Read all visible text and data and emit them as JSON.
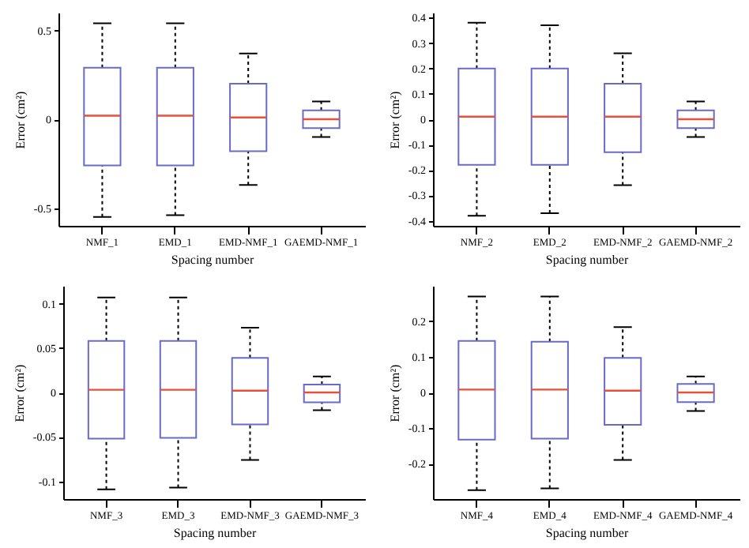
{
  "chart_data": [
    {
      "type": "box",
      "xlabel": "Spacing number",
      "ylabel": "Error (cm²)",
      "categories": [
        "NMF_1",
        "EMD_1",
        "EMD-NMF_1",
        "GAEMD-NMF_1"
      ],
      "ylim": [
        -0.6,
        0.6
      ],
      "yticks": [
        -0.5,
        0,
        0.5
      ],
      "series": [
        {
          "color": "#6a6ac8",
          "boxes": [
            {
              "low": -0.55,
              "q1": -0.26,
              "median": 0.02,
              "q3": 0.29,
              "high": 0.54
            },
            {
              "low": -0.54,
              "q1": -0.26,
              "median": 0.02,
              "q3": 0.29,
              "high": 0.54
            },
            {
              "low": -0.37,
              "q1": -0.18,
              "median": 0.01,
              "q3": 0.2,
              "high": 0.37
            },
            {
              "low": -0.1,
              "q1": -0.05,
              "median": 0,
              "q3": 0.05,
              "high": 0.1
            }
          ]
        }
      ]
    },
    {
      "type": "box",
      "xlabel": "Spacing number",
      "ylabel": "Error (cm²)",
      "categories": [
        "NMF_2",
        "EMD_2",
        "EMD-NMF_2",
        "GAEMD-NMF_2"
      ],
      "ylim": [
        -0.42,
        0.42
      ],
      "yticks": [
        -0.4,
        -0.3,
        -0.2,
        -0.1,
        0,
        0.1,
        0.2,
        0.3,
        0.4
      ],
      "series": [
        {
          "color": "#6a6ac8",
          "boxes": [
            {
              "low": -0.38,
              "q1": -0.18,
              "median": 0.01,
              "q3": 0.2,
              "high": 0.38
            },
            {
              "low": -0.37,
              "q1": -0.18,
              "median": 0.01,
              "q3": 0.2,
              "high": 0.37
            },
            {
              "low": -0.26,
              "q1": -0.13,
              "median": 0.01,
              "q3": 0.14,
              "high": 0.26
            },
            {
              "low": -0.07,
              "q1": -0.035,
              "median": 0,
              "q3": 0.035,
              "high": 0.07
            }
          ]
        }
      ]
    },
    {
      "type": "box",
      "xlabel": "Spacing number",
      "ylabel": "Error (cm²)",
      "categories": [
        "NMF_3",
        "EMD_3",
        "EMD-NMF_3",
        "GAEMD-NMF_3"
      ],
      "ylim": [
        -0.12,
        0.12
      ],
      "yticks": [
        -0.1,
        -0.05,
        0,
        0.05,
        0.1
      ],
      "series": [
        {
          "color": "#6a6ac8",
          "boxes": [
            {
              "low": -0.109,
              "q1": -0.052,
              "median": 0.003,
              "q3": 0.058,
              "high": 0.107
            },
            {
              "low": -0.107,
              "q1": -0.051,
              "median": 0.003,
              "q3": 0.058,
              "high": 0.107
            },
            {
              "low": -0.076,
              "q1": -0.036,
              "median": 0.002,
              "q3": 0.039,
              "high": 0.073
            },
            {
              "low": -0.02,
              "q1": -0.011,
              "median": 0,
              "q3": 0.009,
              "high": 0.018
            }
          ]
        }
      ]
    },
    {
      "type": "box",
      "xlabel": "Spacing number",
      "ylabel": "Error (cm²)",
      "categories": [
        "NMF_4",
        "EMD_4",
        "EMD-NMF_4",
        "GAEMD-NMF_4"
      ],
      "ylim": [
        -0.3,
        0.3
      ],
      "yticks": [
        -0.2,
        -0.1,
        0,
        0.1,
        0.2
      ],
      "series": [
        {
          "color": "#6a6ac8",
          "boxes": [
            {
              "low": -0.275,
              "q1": -0.133,
              "median": 0.008,
              "q3": 0.145,
              "high": 0.27
            },
            {
              "low": -0.27,
              "q1": -0.13,
              "median": 0.008,
              "q3": 0.143,
              "high": 0.27
            },
            {
              "low": -0.19,
              "q1": -0.091,
              "median": 0.005,
              "q3": 0.097,
              "high": 0.184
            },
            {
              "low": -0.052,
              "q1": -0.027,
              "median": 0,
              "q3": 0.024,
              "high": 0.045
            }
          ]
        }
      ]
    }
  ]
}
